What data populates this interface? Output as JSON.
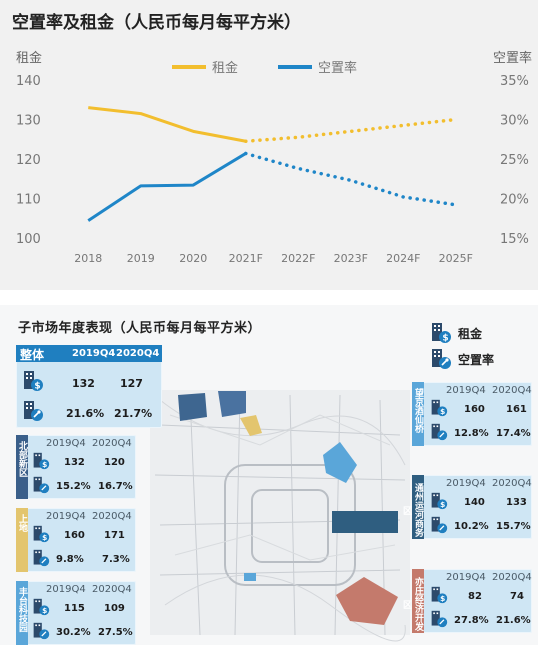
{
  "chart_data": {
    "type": "line",
    "title": "空置率及租金（人民币每月每平方米）",
    "categories": [
      "2018",
      "2019",
      "2020",
      "2021F",
      "2022F",
      "2023F",
      "2024F",
      "2025F"
    ],
    "y_left": {
      "label": "租金",
      "ticks": [
        "100",
        "110",
        "120",
        "130",
        "140"
      ],
      "lim": [
        100,
        140
      ]
    },
    "y_right": {
      "label": "空置率",
      "ticks": [
        "15%",
        "20%",
        "25%",
        "30%",
        "35%"
      ],
      "lim": [
        15,
        35
      ]
    },
    "legend_position": "top",
    "forecast_from_index": 3,
    "series": [
      {
        "name": "租金",
        "axis": "left",
        "color": "#f2be2e",
        "values": [
          133,
          131.5,
          127,
          124.5,
          125.5,
          127,
          128.5,
          130
        ]
      },
      {
        "name": "空置率",
        "axis": "right",
        "color": "#1f86c8",
        "values": [
          17.2,
          21.6,
          21.7,
          25.7,
          23.8,
          22.3,
          20.2,
          19.2
        ]
      }
    ]
  },
  "submarket": {
    "title": "子市场年度表现（人民币每月每平方米）",
    "legend": {
      "rent": "租金",
      "vacancy": "空置率"
    },
    "overall": {
      "label": "整体",
      "years": [
        "2019Q4",
        "2020Q4"
      ],
      "rent": [
        "132",
        "127"
      ],
      "vacancy": [
        "21.6%",
        "21.7%"
      ]
    },
    "cards": [
      {
        "name": "北部新区",
        "years": [
          "2019Q4",
          "2020Q4"
        ],
        "rent": [
          "132",
          "120"
        ],
        "vacancy": [
          "15.2%",
          "16.7%"
        ],
        "color": "#3a5f8a"
      },
      {
        "name": "上地",
        "years": [
          "2019Q4",
          "2020Q4"
        ],
        "rent": [
          "160",
          "171"
        ],
        "vacancy": [
          "9.8%",
          "7.3%"
        ],
        "color": "#e3c56e"
      },
      {
        "name": "丰台科技园",
        "years": [
          "2019Q4",
          "2020Q4"
        ],
        "rent": [
          "115",
          "109"
        ],
        "vacancy": [
          "30.2%",
          "27.5%"
        ],
        "color": "#5aa6d9"
      },
      {
        "name": "望京酒仙桥",
        "years": [
          "2019Q4",
          "2020Q4"
        ],
        "rent": [
          "160",
          "161"
        ],
        "vacancy": [
          "12.8%",
          "17.4%"
        ],
        "color": "#5aa6d9"
      },
      {
        "name": "通州运河商务区",
        "years": [
          "2019Q4",
          "2020Q4"
        ],
        "rent": [
          "140",
          "133"
        ],
        "vacancy": [
          "10.2%",
          "15.7%"
        ],
        "color": "#2f5e80"
      },
      {
        "name": "亦庄经济开发区",
        "years": [
          "2019Q4",
          "2020Q4"
        ],
        "rent": [
          "82",
          "74"
        ],
        "vacancy": [
          "27.8%",
          "21.6%"
        ],
        "color": "#c47a6c"
      }
    ]
  }
}
